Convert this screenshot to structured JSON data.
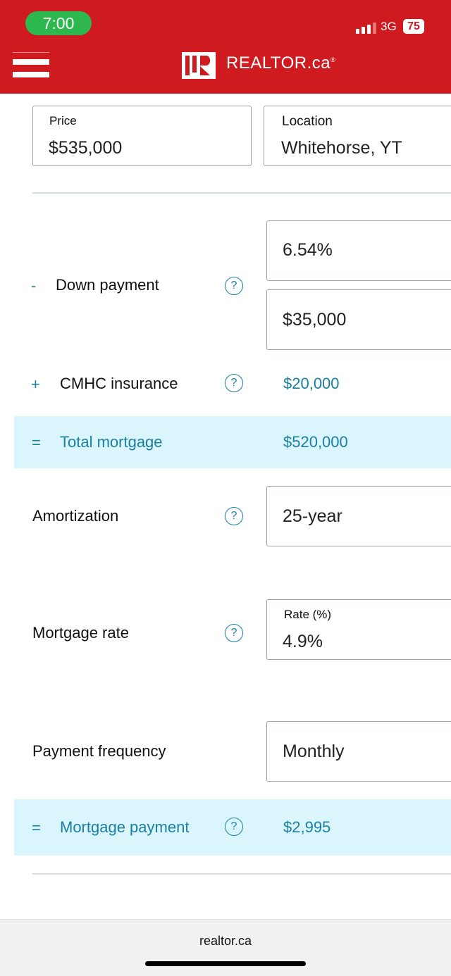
{
  "status_bar": {
    "time": "7:00",
    "network": "3G",
    "battery": "75"
  },
  "header": {
    "brand": "REALTOR.ca",
    "brand_suffix": "®"
  },
  "price": {
    "label": "Price",
    "value": "$535,000"
  },
  "location": {
    "label": "Location",
    "value": "Whitehorse, YT"
  },
  "down_payment": {
    "sign": "-",
    "label": "Down payment",
    "percent": "6.54%",
    "amount": "$35,000"
  },
  "cmhc": {
    "sign": "+",
    "label": "CMHC insurance",
    "value": "$20,000"
  },
  "total_mortgage": {
    "sign": "=",
    "label": "Total mortgage",
    "value": "$520,000"
  },
  "amortization": {
    "label": "Amortization",
    "value": "25-year"
  },
  "mortgage_rate": {
    "label": "Mortgage rate",
    "field_label": "Rate (%)",
    "value": "4.9%"
  },
  "payment_frequency": {
    "label": "Payment frequency",
    "value": "Monthly"
  },
  "mortgage_payment": {
    "sign": "=",
    "label": "Mortgage payment",
    "value": "$2,995"
  },
  "help_glyph": "?",
  "browser": {
    "url": "realtor.ca"
  },
  "colors": {
    "brand_red": "#cf1a1f",
    "accent_teal": "#1a7fa3",
    "highlight_band": "#daf6fc"
  }
}
